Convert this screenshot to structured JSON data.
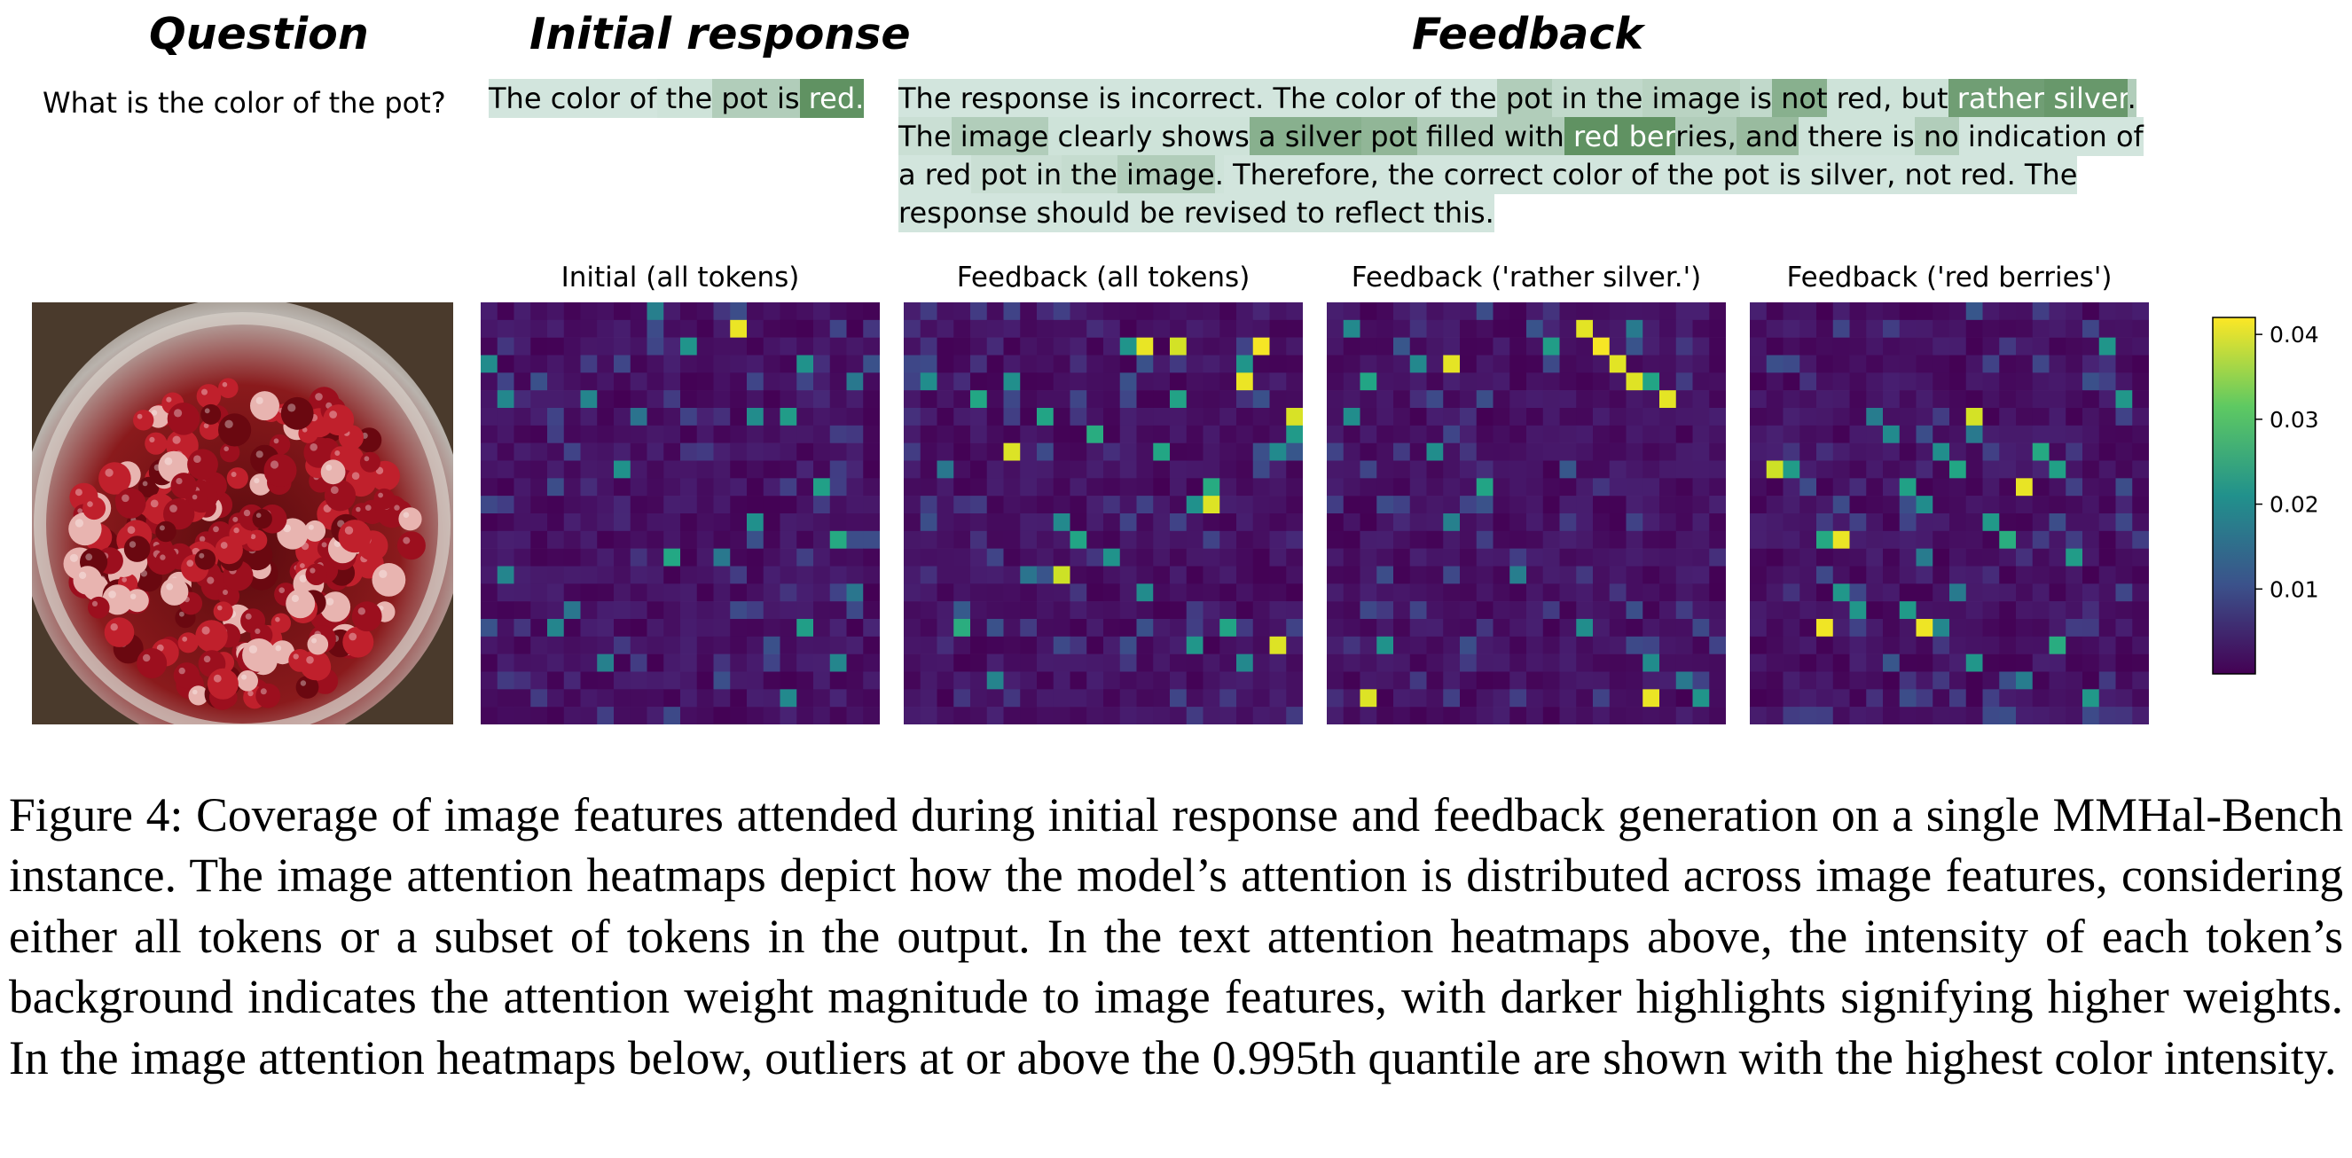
{
  "headers": {
    "question": "Question",
    "initial_response": "Initial response",
    "feedback": "Feedback"
  },
  "question": "What is the color of the pot?",
  "initial_response_tokens": [
    {
      "t": "The",
      "w": 0.1
    },
    {
      "t": " color",
      "w": 0.1
    },
    {
      "t": " of",
      "w": 0.1
    },
    {
      "t": " the",
      "w": 0.12
    },
    {
      "t": " pot",
      "w": 0.3
    },
    {
      "t": " is",
      "w": 0.3
    },
    {
      "t": " red.",
      "w": 0.8
    }
  ],
  "feedback_lines": [
    [
      {
        "t": "The",
        "w": 0.1
      },
      {
        "t": " response",
        "w": 0.1
      },
      {
        "t": " is",
        "w": 0.1
      },
      {
        "t": " incorrect.",
        "w": 0.1
      },
      {
        "t": " The",
        "w": 0.1
      },
      {
        "t": " color",
        "w": 0.1
      },
      {
        "t": " of",
        "w": 0.1
      },
      {
        "t": " the",
        "w": 0.1
      },
      {
        "t": " pot",
        "w": 0.3
      },
      {
        "t": " in",
        "w": 0.2
      },
      {
        "t": " the",
        "w": 0.2
      },
      {
        "t": " image",
        "w": 0.25
      },
      {
        "t": " is",
        "w": 0.2
      },
      {
        "t": " not",
        "w": 0.55
      },
      {
        "t": " red,",
        "w": 0.12
      },
      {
        "t": " but",
        "w": 0.12
      },
      {
        "t": " rather",
        "w": 0.7
      },
      {
        "t": " silver",
        "w": 0.75
      },
      {
        "t": ".",
        "w": 0.3
      }
    ],
    [
      {
        "t": "The",
        "w": 0.15
      },
      {
        "t": " image",
        "w": 0.3
      },
      {
        "t": " clearly",
        "w": 0.12
      },
      {
        "t": " shows",
        "w": 0.12
      },
      {
        "t": " a",
        "w": 0.55
      },
      {
        "t": " silver",
        "w": 0.55
      },
      {
        "t": " pot",
        "w": 0.5
      },
      {
        "t": " filled",
        "w": 0.3
      },
      {
        "t": " with",
        "w": 0.3
      },
      {
        "t": " red",
        "w": 0.8
      },
      {
        "t": " ber",
        "w": 0.8
      },
      {
        "t": "ries,",
        "w": 0.3
      },
      {
        "t": " and",
        "w": 0.45
      },
      {
        "t": " there",
        "w": 0.12
      },
      {
        "t": " is",
        "w": 0.12
      },
      {
        "t": " no",
        "w": 0.3
      },
      {
        "t": " indication",
        "w": 0.1
      },
      {
        "t": " of",
        "w": 0.1
      }
    ],
    [
      {
        "t": "a",
        "w": 0.1
      },
      {
        "t": " red",
        "w": 0.1
      },
      {
        "t": " pot",
        "w": 0.15
      },
      {
        "t": " in",
        "w": 0.15
      },
      {
        "t": " the",
        "w": 0.18
      },
      {
        "t": " image",
        "w": 0.3
      },
      {
        "t": ".",
        "w": 0.12
      },
      {
        "t": " Therefore,",
        "w": 0.1
      },
      {
        "t": " the",
        "w": 0.1
      },
      {
        "t": " correct",
        "w": 0.1
      },
      {
        "t": " color",
        "w": 0.1
      },
      {
        "t": " of",
        "w": 0.1
      },
      {
        "t": " the",
        "w": 0.1
      },
      {
        "t": " pot",
        "w": 0.1
      },
      {
        "t": " is",
        "w": 0.1
      },
      {
        "t": " silver,",
        "w": 0.1
      },
      {
        "t": " not",
        "w": 0.1
      },
      {
        "t": " red.",
        "w": 0.1
      },
      {
        "t": " The",
        "w": 0.1
      }
    ],
    [
      {
        "t": "response",
        "w": 0.1
      },
      {
        "t": " should",
        "w": 0.1
      },
      {
        "t": " be",
        "w": 0.1
      },
      {
        "t": " revised",
        "w": 0.1
      },
      {
        "t": " to",
        "w": 0.1
      },
      {
        "t": " reflect",
        "w": 0.1
      },
      {
        "t": " this.",
        "w": 0.1
      }
    ]
  ],
  "token_highlight_colors": {
    "low": "#e2f1ee",
    "high": "#3f7a3f"
  },
  "panel_titles": [
    "Initial (all tokens)",
    "Feedback (all tokens)",
    "Feedback ('rather silver.')",
    "Feedback ('red berries')"
  ],
  "image_description_icon": "cranberries-in-pot-photo",
  "chart_data": {
    "type": "heatmap",
    "colormap": "viridis",
    "grid": [
      24,
      24
    ],
    "colorbar": {
      "range": [
        0.0,
        0.042
      ],
      "ticks": [
        "0.01",
        "0.02",
        "0.03",
        "0.04"
      ]
    },
    "outlier_quantile": 0.995,
    "panels": [
      {
        "title": "Initial (all tokens)",
        "hot": [
          [
            10,
            0
          ],
          [
            12,
            2
          ],
          [
            16,
            6
          ],
          [
            18,
            6
          ],
          [
            19,
            3
          ],
          [
            20,
            10
          ],
          [
            21,
            13
          ],
          [
            22,
            16
          ],
          [
            6,
            5
          ],
          [
            9,
            6
          ],
          [
            1,
            5
          ],
          [
            0,
            3
          ],
          [
            1,
            15
          ],
          [
            4,
            18
          ],
          [
            5,
            17
          ],
          [
            7,
            20
          ],
          [
            11,
            14
          ],
          [
            14,
            14
          ],
          [
            16,
            12
          ],
          [
            19,
            18
          ],
          [
            21,
            20
          ],
          [
            22,
            4
          ],
          [
            18,
            22
          ],
          [
            8,
            9
          ]
        ],
        "peaks": [
          [
            15,
            1
          ]
        ]
      },
      {
        "title": "Feedback (all tokens)",
        "hot": [
          [
            1,
            4
          ],
          [
            4,
            5
          ],
          [
            6,
            4
          ],
          [
            8,
            6
          ],
          [
            9,
            12
          ],
          [
            10,
            13
          ],
          [
            12,
            14
          ],
          [
            14,
            16
          ],
          [
            17,
            19
          ],
          [
            19,
            18
          ],
          [
            20,
            3
          ],
          [
            21,
            2
          ],
          [
            22,
            8
          ],
          [
            23,
            7
          ],
          [
            3,
            18
          ],
          [
            5,
            21
          ],
          [
            7,
            15
          ],
          [
            11,
            7
          ],
          [
            16,
            5
          ],
          [
            18,
            10
          ],
          [
            20,
            20
          ],
          [
            2,
            9
          ],
          [
            13,
            2
          ],
          [
            15,
            8
          ],
          [
            17,
            11
          ]
        ],
        "peaks": [
          [
            21,
            2
          ],
          [
            6,
            8
          ],
          [
            9,
            15
          ],
          [
            14,
            2
          ],
          [
            16,
            2
          ],
          [
            18,
            11
          ],
          [
            20,
            4
          ],
          [
            22,
            19
          ],
          [
            23,
            6
          ]
        ]
      },
      {
        "title": "Feedback ('rather silver.')",
        "hot": [
          [
            1,
            1
          ],
          [
            1,
            6
          ],
          [
            2,
            4
          ],
          [
            3,
            19
          ],
          [
            5,
            3
          ],
          [
            6,
            8
          ],
          [
            18,
            1
          ],
          [
            19,
            4
          ],
          [
            19,
            20
          ],
          [
            21,
            21
          ],
          [
            22,
            22
          ],
          [
            15,
            18
          ],
          [
            13,
            2
          ],
          [
            7,
            12
          ],
          [
            9,
            10
          ],
          [
            11,
            15
          ]
        ],
        "peaks": [
          [
            2,
            22
          ],
          [
            7,
            3
          ],
          [
            15,
            1
          ],
          [
            16,
            2
          ],
          [
            17,
            3
          ],
          [
            18,
            4
          ],
          [
            20,
            5
          ],
          [
            19,
            22
          ]
        ]
      },
      {
        "title": "Feedback ('red berries')",
        "hot": [
          [
            7,
            6
          ],
          [
            8,
            7
          ],
          [
            9,
            10
          ],
          [
            10,
            11
          ],
          [
            11,
            8
          ],
          [
            12,
            9
          ],
          [
            13,
            7
          ],
          [
            14,
            12
          ],
          [
            15,
            13
          ],
          [
            16,
            10
          ],
          [
            17,
            8
          ],
          [
            18,
            9
          ],
          [
            19,
            14
          ],
          [
            4,
            13
          ],
          [
            5,
            16
          ],
          [
            6,
            17
          ],
          [
            9,
            17
          ],
          [
            11,
            18
          ],
          [
            13,
            20
          ],
          [
            16,
            21
          ],
          [
            18,
            19
          ],
          [
            20,
            22
          ],
          [
            21,
            2
          ],
          [
            22,
            5
          ],
          [
            2,
            9
          ],
          [
            10,
            14
          ],
          [
            12,
            16
          ]
        ],
        "peaks": [
          [
            13,
            6
          ],
          [
            1,
            9
          ],
          [
            5,
            13
          ],
          [
            4,
            18
          ],
          [
            16,
            10
          ],
          [
            10,
            18
          ]
        ]
      }
    ]
  },
  "caption": "Figure 4: Coverage of image features attended during initial response and feedback generation on a single MMHal-Bench instance. The image attention heatmaps depict how the model’s attention is distributed across image features, considering either all tokens or a subset of tokens in the output. In the text attention heatmaps above, the intensity of each token’s background indicates the attention weight magnitude to image features, with darker highlights signifying higher weights. In the image attention heatmaps below, outliers at or above the 0.995th quantile are shown with the highest color intensity."
}
